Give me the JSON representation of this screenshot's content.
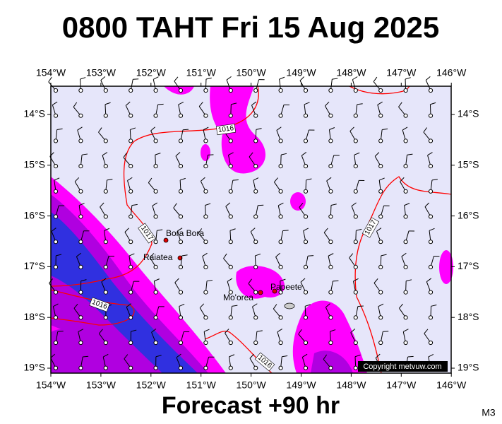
{
  "header": {
    "title": "0800 TAHT Fri 15 Aug 2025"
  },
  "footer": {
    "forecast": "Forecast +90 hr",
    "model": "M3"
  },
  "map": {
    "lon_labels": [
      "154°W",
      "153°W",
      "152°W",
      "151°W",
      "150°W",
      "149°W",
      "148°W",
      "147°W",
      "146°W"
    ],
    "lat_labels": [
      "14°S",
      "15°S",
      "16°S",
      "17°S",
      "18°S",
      "19°S"
    ],
    "places": [
      "Bora Bora",
      "Raiatea",
      "Mo'orea",
      "Papeete"
    ],
    "isobar_labels": [
      "1016",
      "1017",
      "1017",
      "1016",
      "1016"
    ],
    "copyright": "Copyright metvuw.com"
  }
}
